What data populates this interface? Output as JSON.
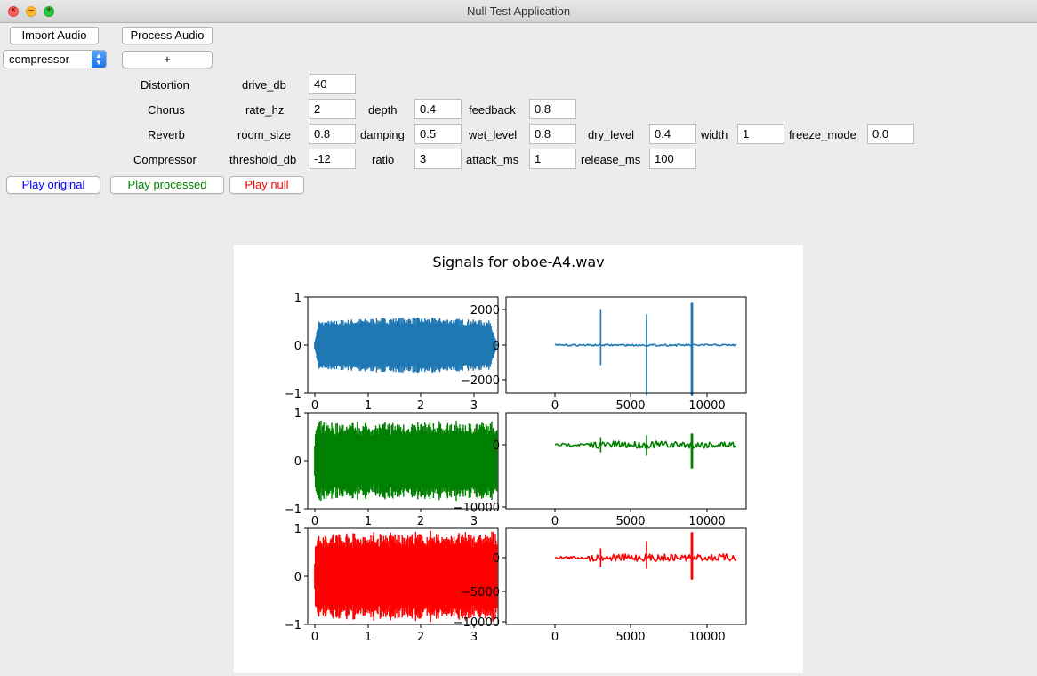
{
  "window": {
    "title": "Null Test Application"
  },
  "toolbar": {
    "import_label": "Import Audio",
    "process_label": "Process Audio",
    "effect_selected": "compressor",
    "add_label": "+"
  },
  "effects": {
    "distortion": {
      "name": "Distortion",
      "params": [
        {
          "label": "drive_db",
          "value": "40"
        }
      ]
    },
    "chorus": {
      "name": "Chorus",
      "params": [
        {
          "label": "rate_hz",
          "value": "2"
        },
        {
          "label": "depth",
          "value": "0.4"
        },
        {
          "label": "feedback",
          "value": "0.8"
        }
      ]
    },
    "reverb": {
      "name": "Reverb",
      "params": [
        {
          "label": "room_size",
          "value": "0.8"
        },
        {
          "label": "damping",
          "value": "0.5"
        },
        {
          "label": "wet_level",
          "value": "0.8"
        },
        {
          "label": "dry_level",
          "value": "0.4"
        },
        {
          "label": "width",
          "value": "1"
        },
        {
          "label": "freeze_mode",
          "value": "0.0"
        }
      ]
    },
    "compressor": {
      "name": "Compressor",
      "params": [
        {
          "label": "threshold_db",
          "value": "-12"
        },
        {
          "label": "ratio",
          "value": "3"
        },
        {
          "label": "attack_ms",
          "value": "1"
        },
        {
          "label": "release_ms",
          "value": "100"
        }
      ]
    }
  },
  "playback": {
    "original_label": "Play original",
    "processed_label": "Play processed",
    "null_label": "Play null",
    "original_color": "#0000ff",
    "processed_color": "#007f00",
    "null_color": "#ff0000"
  },
  "chart_data": {
    "title": "Signals for oboe-A4.wav",
    "colors": [
      "#1f77b4",
      "#008000",
      "#ff0000"
    ],
    "time_panels": [
      {
        "type": "area",
        "x_ticks": [
          "0",
          "1",
          "2",
          "3"
        ],
        "y_ticks": [
          "1",
          "0",
          "−1"
        ],
        "xlim": [
          -0.1,
          3.5
        ],
        "ylim": [
          -1,
          1
        ],
        "amplitude_envelope": 0.6
      },
      {
        "type": "area",
        "x_ticks": [
          "0",
          "1",
          "2",
          "3"
        ],
        "y_ticks": [
          "1",
          "0",
          "−1"
        ],
        "xlim": [
          -0.1,
          3.5
        ],
        "ylim": [
          -1,
          1
        ],
        "amplitude_envelope": 0.88
      },
      {
        "type": "area",
        "x_ticks": [
          "0",
          "1",
          "2",
          "3"
        ],
        "y_ticks": [
          "1",
          "0",
          "−1"
        ],
        "xlim": [
          -0.1,
          3.5
        ],
        "ylim": [
          -1,
          1
        ],
        "amplitude_envelope": 1.0
      }
    ],
    "freq_panels": [
      {
        "type": "line",
        "x_ticks": [
          "0",
          "5000",
          "10000"
        ],
        "y_ticks": [
          "2000",
          "0",
          "−2000"
        ],
        "xlim": [
          -600,
          12600
        ],
        "ylim": [
          -2800,
          2800
        ]
      },
      {
        "type": "line",
        "x_ticks": [
          "0",
          "5000",
          "10000"
        ],
        "y_ticks": [
          "0",
          "−10000"
        ],
        "xlim": [
          -600,
          12600
        ],
        "ylim": [
          -10500,
          1900
        ]
      },
      {
        "type": "line",
        "x_ticks": [
          "0",
          "5000",
          "10000"
        ],
        "y_ticks": [
          "0",
          "−5000",
          "−10000"
        ],
        "xlim": [
          -600,
          12600
        ],
        "ylim": [
          -10500,
          3500
        ]
      }
    ]
  }
}
